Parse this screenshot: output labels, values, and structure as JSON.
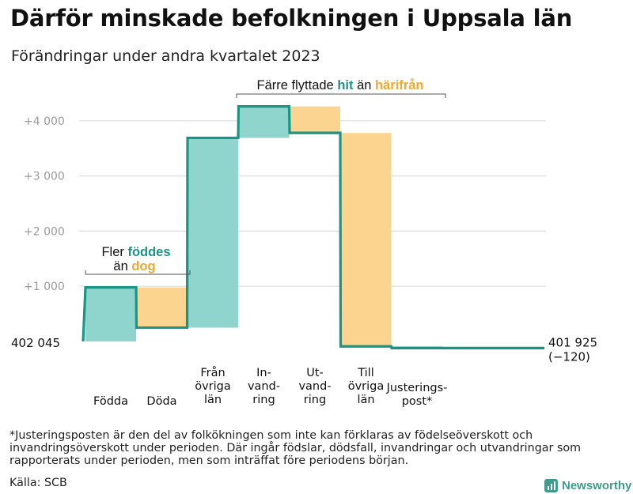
{
  "chart_data": {
    "type": "waterfall",
    "title": "Därför minskade befolkningen i Uppsala län",
    "subtitle": "Förändringar under andra kvartalet 2023",
    "start": 402045,
    "start_label": "402  045",
    "end": 401925,
    "end_label": "401 925",
    "end_change_label": "(−120)",
    "y_ticks": [
      {
        "value": 1000,
        "label": "+1  000"
      },
      {
        "value": 2000,
        "label": "+2  000"
      },
      {
        "value": 3000,
        "label": "+3  000"
      },
      {
        "value": 4000,
        "label": "+4  000"
      }
    ],
    "ylim": [
      -200,
      4500
    ],
    "grid": true,
    "steps": [
      {
        "category": "Födda",
        "lines": [
          "Födda"
        ],
        "delta": 980,
        "color": "#8fd5cd"
      },
      {
        "category": "Döda",
        "lines": [
          "Döda"
        ],
        "delta": -730,
        "color": "#fbd58f"
      },
      {
        "category": "Från övriga län",
        "lines": [
          "Från",
          "övriga",
          "län"
        ],
        "delta": 3440,
        "color": "#8fd5cd"
      },
      {
        "category": "Invandring",
        "lines": [
          "In-",
          "vand-",
          "ring"
        ],
        "delta": 570,
        "color": "#8fd5cd"
      },
      {
        "category": "Utvandring",
        "lines": [
          "Ut-",
          "vand-",
          "ring"
        ],
        "delta": -480,
        "color": "#fbd58f"
      },
      {
        "category": "Till övriga län",
        "lines": [
          "Till",
          "övriga",
          "län"
        ],
        "delta": -3870,
        "color": "#fbd58f"
      },
      {
        "category": "Justeringspost*",
        "lines": [
          "Justerings-",
          "post*"
        ],
        "delta": -30,
        "color": "#8fd5cd"
      }
    ],
    "annotations": [
      {
        "id": "births",
        "line1_plain": "Fler ",
        "line1_colored": "föddes",
        "line1_color": "#1a9485",
        "line2_plain": "än ",
        "line2_colored": "dog",
        "line2_color": "#f0a830"
      },
      {
        "id": "moves",
        "plain1": "Färre flyttade ",
        "colored1": "hit",
        "color1": "#1a9485",
        "plain2": " än ",
        "colored2": "härifrån",
        "color2": "#f0a830"
      }
    ],
    "colors": {
      "increase": "#8fd5cd",
      "decrease": "#fbd58f",
      "line": "#1a9485",
      "grid": "#dddddd",
      "tick_text": "#999999"
    }
  },
  "footnote": "*Justeringsposten är den del av folkökningen som inte kan förklaras av födelseöverskott och invandringsöverskott under perioden. Där ingår födslar, dödsfall, invandringar och utvandringar som rapporterats under perioden, men som inträffat före periodens början.",
  "source": "Källa: SCB",
  "brand": {
    "name": "Newsworthy",
    "icon": "bar-chart-icon"
  }
}
